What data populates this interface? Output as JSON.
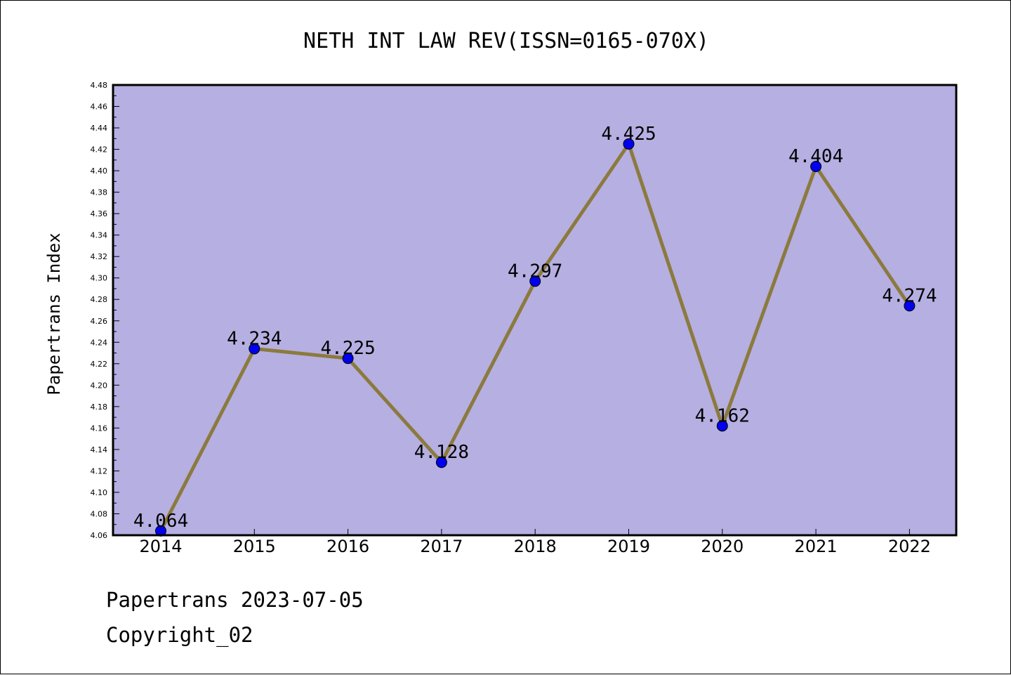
{
  "chart_data": {
    "type": "line",
    "title": "NETH INT LAW REV(ISSN=0165-070X)",
    "xlabel": "",
    "ylabel": "Papertrans Index",
    "categories": [
      "2014",
      "2015",
      "2016",
      "2017",
      "2018",
      "2019",
      "2020",
      "2021",
      "2022"
    ],
    "values": [
      4.064,
      4.234,
      4.225,
      4.128,
      4.297,
      4.425,
      4.162,
      4.404,
      4.274
    ],
    "data_labels": [
      "4.064",
      "4.234",
      "4.225",
      "4.128",
      "4.297",
      "4.425",
      "4.162",
      "4.404",
      "4.274"
    ],
    "ylim": [
      4.06,
      4.48
    ],
    "yticks": [
      "4.06",
      "4.08",
      "4.10",
      "4.12",
      "4.14",
      "4.16",
      "4.18",
      "4.20",
      "4.22",
      "4.24",
      "4.26",
      "4.28",
      "4.30",
      "4.32",
      "4.34",
      "4.36",
      "4.38",
      "4.40",
      "4.42",
      "4.44",
      "4.46",
      "4.48"
    ],
    "grid": false,
    "colors": {
      "plot_background": "#b5afe2",
      "line": "#8b7a3c",
      "marker": "#0000ee"
    }
  },
  "footer": {
    "line1": "Papertrans 2023-07-05",
    "line2": "Copyright_02"
  }
}
